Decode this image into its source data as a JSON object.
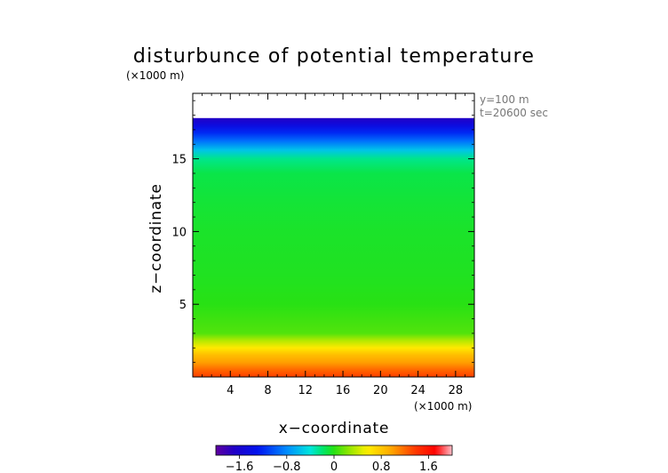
{
  "chart_data": {
    "type": "heatmap",
    "title": "disturbunce of potential temperature",
    "x_unit": "(×1000 m)",
    "y_unit": "(×1000 m)",
    "xlabel": "x−coordinate",
    "ylabel": "z−coordinate",
    "xlim": [
      0,
      30
    ],
    "ylim": [
      0,
      19.5
    ],
    "x_ticks": [
      4,
      8,
      12,
      16,
      20,
      24,
      28
    ],
    "y_ticks": [
      5,
      10,
      15
    ],
    "annotations": [
      "y=100 m",
      "t=20600 sec"
    ],
    "colorbar": {
      "range": [
        -2,
        2
      ],
      "tick_values": [
        -1.6,
        -0.8,
        0,
        0.8,
        1.6
      ],
      "tick_labels": [
        "−1.6",
        "−0.8",
        "0",
        "0.8",
        "1.6"
      ]
    },
    "profile_z": [
      0,
      0.5,
      1.0,
      1.5,
      2.0,
      2.5,
      3.0,
      4.0,
      5.0,
      7.0,
      10.0,
      12.0,
      14.0,
      15.0,
      15.6,
      16.2,
      16.8,
      17.3,
      17.8
    ],
    "profile_value": [
      1.35,
      1.2,
      1.0,
      0.85,
      0.6,
      0.35,
      0.1,
      0.05,
      0.0,
      -0.03,
      -0.05,
      -0.08,
      -0.12,
      -0.25,
      -0.55,
      -0.9,
      -1.2,
      -1.45,
      -1.7
    ],
    "data_top_z": 17.8
  }
}
